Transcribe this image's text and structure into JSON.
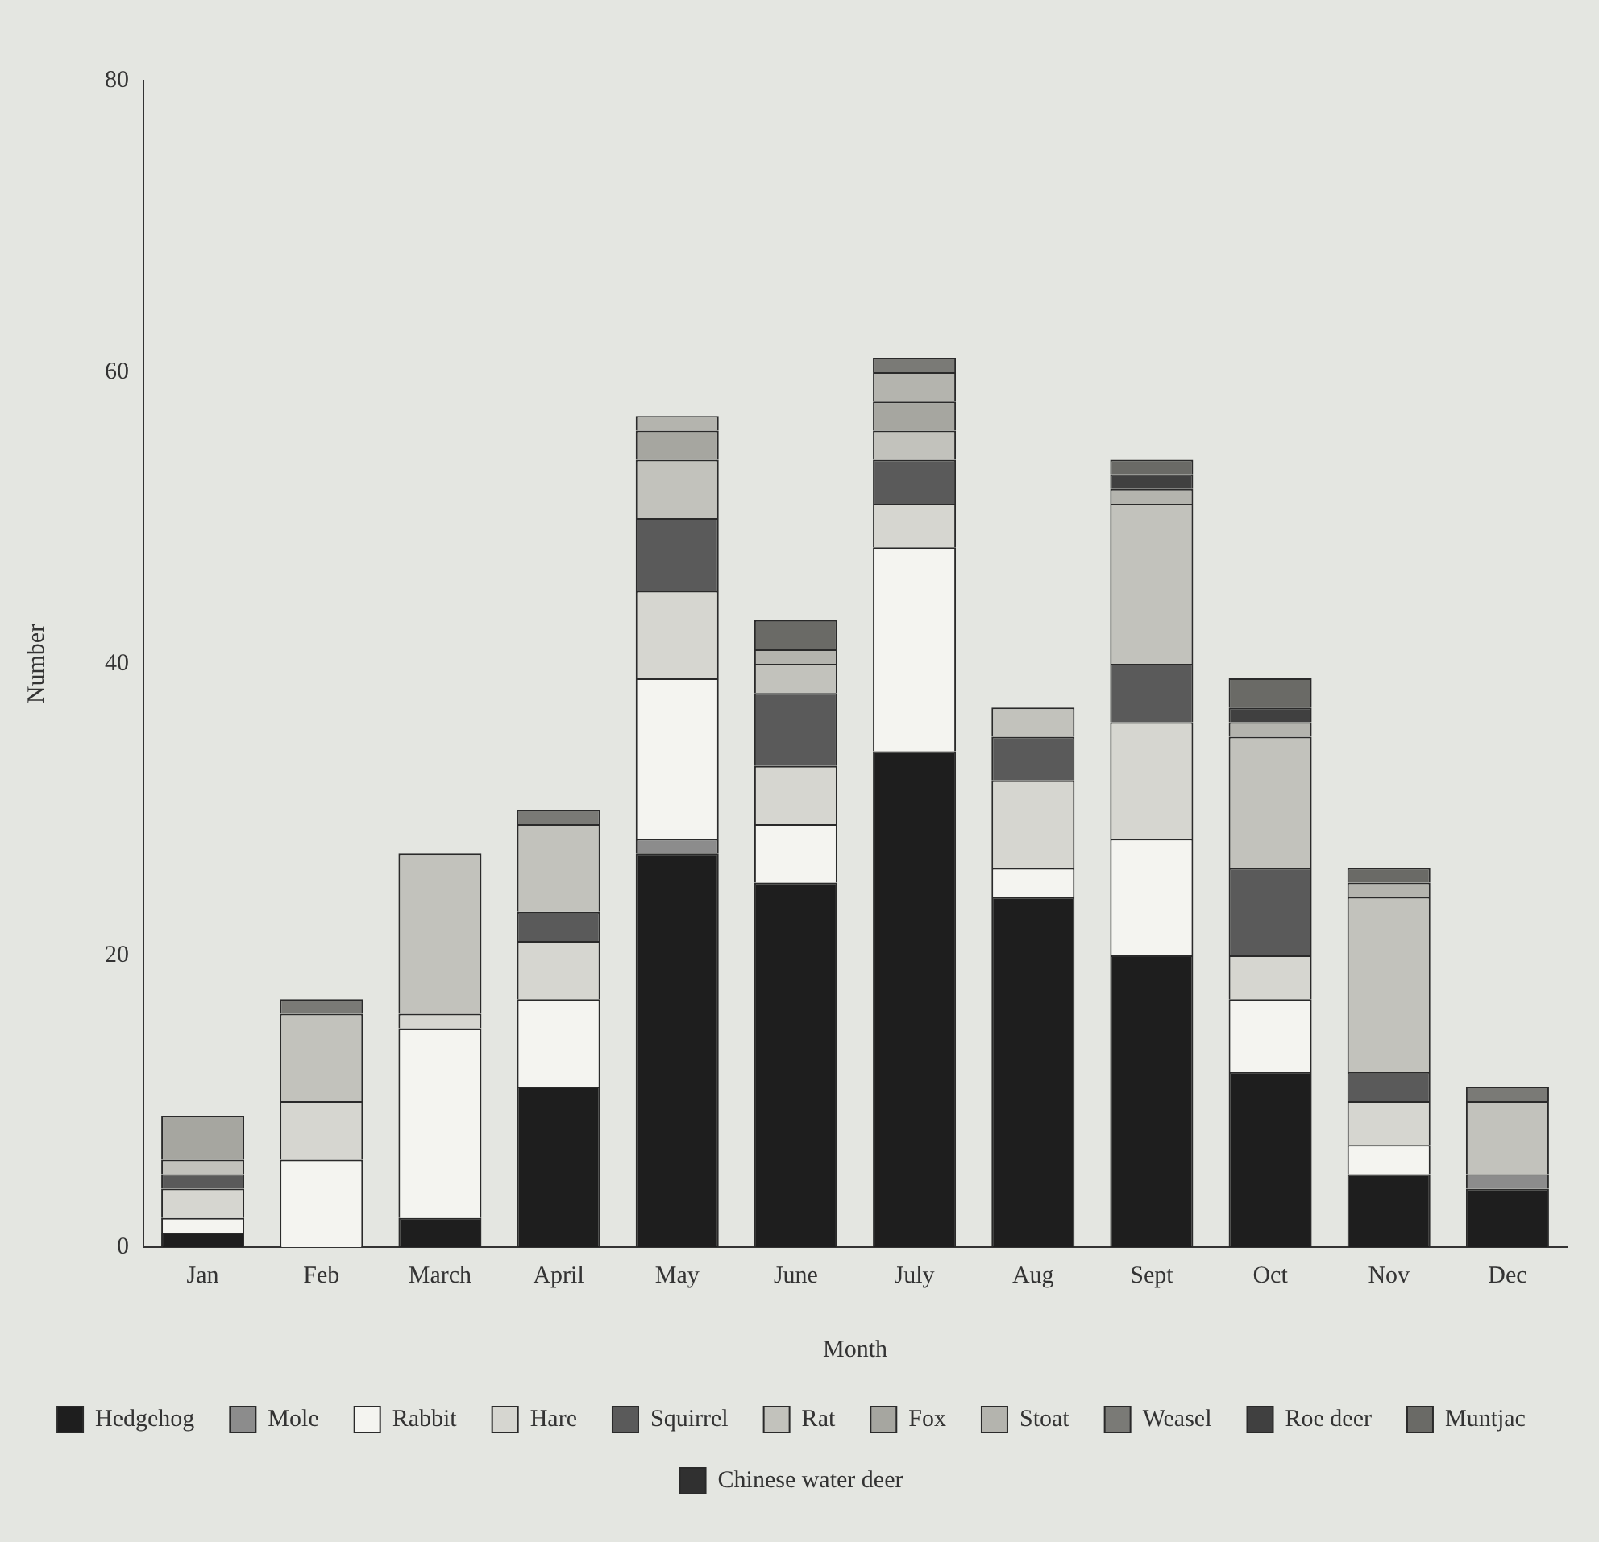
{
  "chart_data": {
    "type": "bar",
    "stacked": true,
    "xlabel": "Month",
    "ylabel": "Number",
    "categories": [
      "Jan",
      "Feb",
      "March",
      "April",
      "May",
      "June",
      "July",
      "Aug",
      "Sept",
      "Oct",
      "Nov",
      "Dec"
    ],
    "ylim": [
      0,
      80
    ],
    "yticks": [
      0,
      20,
      40,
      60,
      80
    ],
    "grid": false,
    "legend": "bottom",
    "series": [
      {
        "name": "Hedgehog",
        "color": "#1e1e1e",
        "values": [
          1,
          0,
          2,
          11,
          27,
          25,
          34,
          24,
          20,
          12,
          5,
          4
        ]
      },
      {
        "name": "Mole",
        "color": "#8c8c8c",
        "values": [
          0,
          0,
          0,
          0,
          1,
          0,
          0,
          0,
          0,
          0,
          0,
          1
        ]
      },
      {
        "name": "Rabbit",
        "color": "#f4f4f0",
        "values": [
          1,
          6,
          13,
          6,
          11,
          4,
          14,
          2,
          8,
          5,
          2,
          0
        ]
      },
      {
        "name": "Hare",
        "color": "#d6d6d0",
        "values": [
          2,
          4,
          1,
          4,
          6,
          4,
          3,
          6,
          8,
          3,
          3,
          0
        ]
      },
      {
        "name": "Squirrel",
        "color": "#5a5a5a",
        "values": [
          1,
          0,
          0,
          2,
          5,
          5,
          3,
          3,
          4,
          6,
          2,
          0
        ]
      },
      {
        "name": "Rat",
        "color": "#c2c2bc",
        "values": [
          1,
          6,
          11,
          6,
          4,
          2,
          2,
          2,
          11,
          9,
          12,
          5
        ]
      },
      {
        "name": "Fox",
        "color": "#a6a6a0",
        "values": [
          3,
          0,
          0,
          0,
          2,
          0,
          2,
          0,
          0,
          0,
          0,
          0
        ]
      },
      {
        "name": "Stoat",
        "color": "#b4b4ae",
        "values": [
          0,
          0,
          0,
          0,
          1,
          1,
          2,
          0,
          1,
          1,
          1,
          0
        ]
      },
      {
        "name": "Weasel",
        "color": "#7a7a76",
        "values": [
          0,
          1,
          0,
          1,
          0,
          0,
          1,
          0,
          0,
          0,
          0,
          1
        ]
      },
      {
        "name": "Roe deer",
        "color": "#404040",
        "values": [
          0,
          0,
          0,
          0,
          0,
          0,
          0,
          0,
          1,
          1,
          0,
          0
        ]
      },
      {
        "name": "Muntjac",
        "color": "#6a6a66",
        "values": [
          0,
          0,
          0,
          0,
          0,
          2,
          0,
          0,
          1,
          2,
          1,
          0
        ]
      },
      {
        "name": "Chinese water deer",
        "color": "#303030",
        "values": [
          0,
          0,
          0,
          0,
          0,
          0,
          0,
          0,
          0,
          0,
          0,
          0
        ]
      }
    ]
  }
}
